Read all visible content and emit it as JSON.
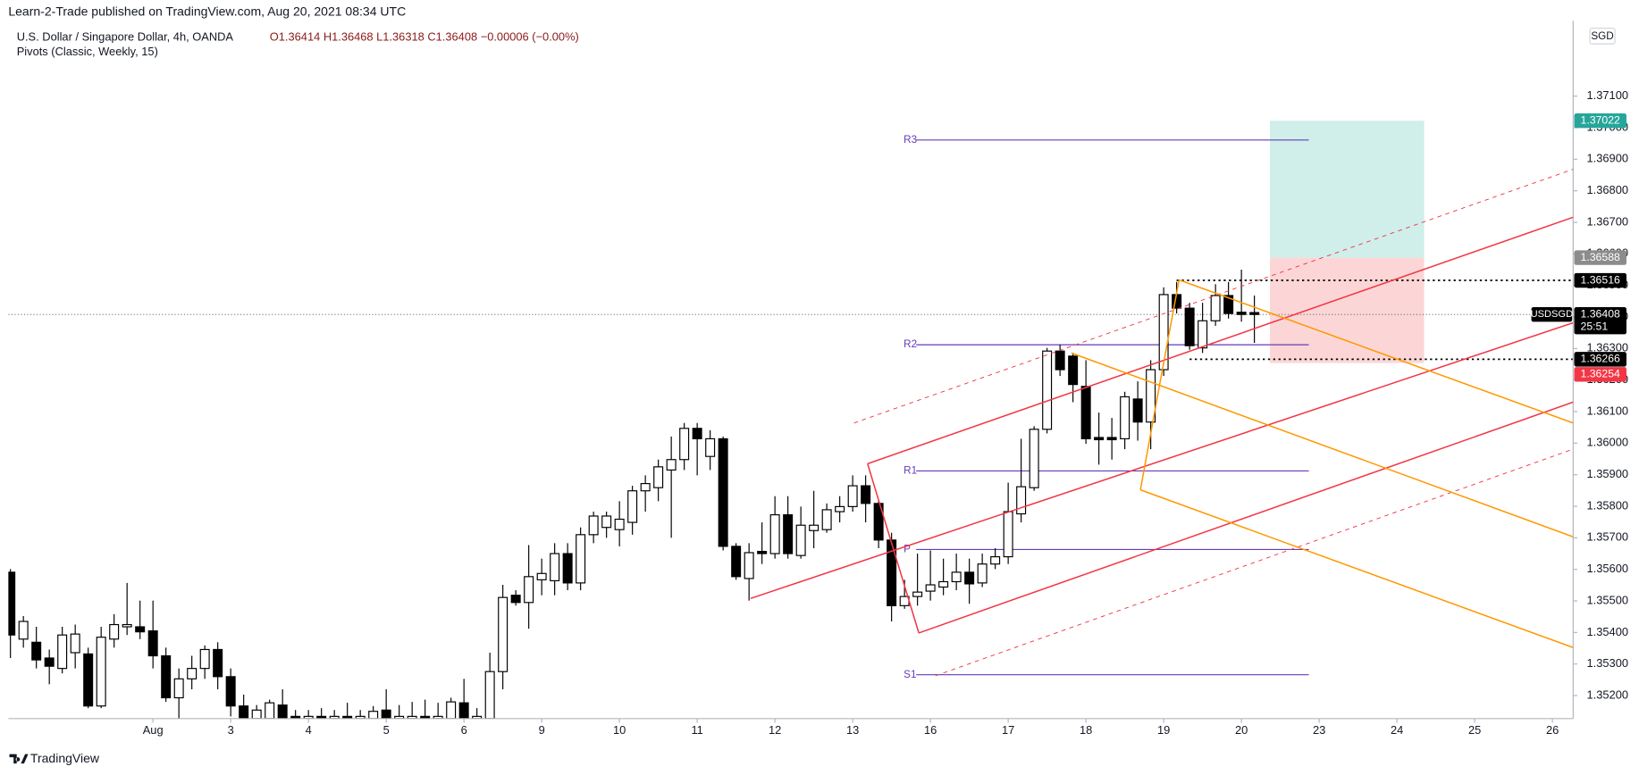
{
  "header": {
    "publisher": "Learn-2-Trade published on TradingView.com, Aug 20, 2021 08:34 UTC",
    "footer": "TradingView"
  },
  "chart_data": {
    "type": "candlestick",
    "title": "U.S. Dollar / Singapore Dollar, 4h, OANDA",
    "subtitle": "O1.36414 H1.36468 L1.36318 C1.36408 −0.00006 (−0.00%)",
    "indicator": "Pivots (Classic, Weekly, 15)",
    "currency": "SGD",
    "up_color": "#ffffff",
    "down_color": "#000000",
    "series": [
      {
        "name": "USDSGD",
        "open": [
          1.35591,
          1.35379,
          1.35369,
          1.35319,
          1.35286,
          1.35336,
          1.35332,
          1.35167,
          1.35379,
          1.35418,
          1.35418,
          1.35405,
          1.35326,
          1.35193,
          1.35253,
          1.35286,
          1.35346,
          1.3526,
          1.35167,
          1.35127,
          1.35127,
          1.3517,
          1.35134,
          1.35127,
          1.35134,
          1.35127,
          1.35134,
          1.35127,
          1.35127,
          1.35154,
          1.35127,
          1.35127,
          1.35134,
          1.35127,
          1.35127,
          1.35177,
          1.35127,
          1.35127,
          1.35276,
          1.35518,
          1.35495,
          1.35567,
          1.35564,
          1.3565,
          1.35557,
          1.3571,
          1.35733,
          1.35726,
          1.35749,
          1.35849,
          1.35859,
          1.35915,
          1.35948,
          1.36047,
          1.35958,
          1.36014,
          1.35673,
          1.35571,
          1.35657,
          1.3565,
          1.35773,
          1.35644,
          1.35723,
          1.35726,
          1.35783,
          1.35799,
          1.35865,
          1.35809,
          1.35693,
          1.35485,
          1.35514,
          1.35531,
          1.35544,
          1.35561,
          1.35591,
          1.35557,
          1.35617,
          1.3564,
          1.35776,
          1.35859,
          1.36044,
          1.36292,
          1.36276,
          1.3618,
          1.36018,
          1.36018,
          1.36014,
          1.3614,
          1.36067,
          1.36233,
          1.36471,
          1.36428,
          1.36302,
          1.36388,
          1.36468,
          1.36415,
          1.36414
        ],
        "high": [
          1.35601,
          1.35452,
          1.35418,
          1.35346,
          1.35418,
          1.35425,
          1.35352,
          1.35418,
          1.35458,
          1.35557,
          1.35501,
          1.35501,
          1.35352,
          1.35286,
          1.35326,
          1.35359,
          1.35369,
          1.35286,
          1.35203,
          1.3517,
          1.35187,
          1.3522,
          1.35154,
          1.35154,
          1.3516,
          1.35154,
          1.35177,
          1.35154,
          1.35167,
          1.3522,
          1.3517,
          1.3518,
          1.35187,
          1.35177,
          1.35193,
          1.35253,
          1.3516,
          1.35336,
          1.35551,
          1.35534,
          1.35677,
          1.35634,
          1.35683,
          1.35683,
          1.35733,
          1.35783,
          1.35783,
          1.35816,
          1.35865,
          1.35898,
          1.35948,
          1.36021,
          1.36064,
          1.36064,
          1.36041,
          1.36021,
          1.35683,
          1.35683,
          1.35749,
          1.35832,
          1.35832,
          1.35799,
          1.35849,
          1.35809,
          1.35832,
          1.35898,
          1.35898,
          1.35816,
          1.35716,
          1.35567,
          1.3565,
          1.3566,
          1.35634,
          1.3565,
          1.35634,
          1.3565,
          1.35667,
          1.35875,
          1.36014,
          1.36054,
          1.36302,
          1.36312,
          1.36286,
          1.36263,
          1.36097,
          1.3608,
          1.36163,
          1.36196,
          1.36263,
          1.36494,
          1.36511,
          1.36445,
          1.36445,
          1.36504,
          1.36511,
          1.3655,
          1.36468
        ],
        "low": [
          1.35319,
          1.35352,
          1.35286,
          1.35236,
          1.3527,
          1.35286,
          1.3516,
          1.3516,
          1.35352,
          1.35392,
          1.35379,
          1.35286,
          1.3518,
          1.35127,
          1.3522,
          1.35253,
          1.3522,
          1.35134,
          1.35114,
          1.35121,
          1.35121,
          1.35114,
          1.35121,
          1.35121,
          1.35114,
          1.35121,
          1.35114,
          1.35121,
          1.35121,
          1.35114,
          1.35121,
          1.35121,
          1.35114,
          1.35121,
          1.35121,
          1.35114,
          1.35121,
          1.35121,
          1.3522,
          1.35485,
          1.35412,
          1.35518,
          1.35518,
          1.35534,
          1.35534,
          1.35683,
          1.357,
          1.35673,
          1.3571,
          1.35783,
          1.35816,
          1.357,
          1.35915,
          1.35898,
          1.35915,
          1.3566,
          1.35567,
          1.35501,
          1.35617,
          1.35634,
          1.35634,
          1.35634,
          1.35667,
          1.35716,
          1.35749,
          1.35783,
          1.35749,
          1.35667,
          1.35435,
          1.35475,
          1.35485,
          1.35501,
          1.35518,
          1.35534,
          1.35491,
          1.35544,
          1.35601,
          1.35617,
          1.35749,
          1.35849,
          1.36031,
          1.36213,
          1.3613,
          1.35998,
          1.35932,
          1.35948,
          1.35981,
          1.36008,
          1.35981,
          1.36213,
          1.36411,
          1.36296,
          1.36286,
          1.36372,
          1.36395,
          1.36385,
          1.36318
        ],
        "close": [
          1.35392,
          1.35435,
          1.35313,
          1.35293,
          1.35392,
          1.35395,
          1.35167,
          1.35385,
          1.35425,
          1.35425,
          1.35402,
          1.35326,
          1.35193,
          1.35253,
          1.35286,
          1.35346,
          1.3526,
          1.35167,
          1.35127,
          1.35154,
          1.35177,
          1.35127,
          1.35127,
          1.35134,
          1.35127,
          1.35134,
          1.35127,
          1.35134,
          1.3515,
          1.35127,
          1.35134,
          1.35134,
          1.35127,
          1.35134,
          1.3518,
          1.35127,
          1.35134,
          1.35276,
          1.35511,
          1.35495,
          1.35577,
          1.35587,
          1.3565,
          1.35557,
          1.3571,
          1.35769,
          1.35769,
          1.35759,
          1.35849,
          1.35872,
          1.35925,
          1.35948,
          1.36047,
          1.36014,
          1.36014,
          1.35673,
          1.35577,
          1.35653,
          1.3565,
          1.35773,
          1.3565,
          1.3574,
          1.3574,
          1.35789,
          1.35799,
          1.35865,
          1.35809,
          1.35693,
          1.35485,
          1.35514,
          1.35528,
          1.35551,
          1.35561,
          1.35591,
          1.35554,
          1.35617,
          1.3564,
          1.35783,
          1.35862,
          1.36044,
          1.36292,
          1.36233,
          1.36186,
          1.36014,
          1.36011,
          1.36011,
          1.36147,
          1.36067,
          1.36233,
          1.36471,
          1.36428,
          1.36309,
          1.36388,
          1.36468,
          1.36411,
          1.36408,
          1.36408
        ]
      }
    ],
    "countdown": "25:51",
    "xlim": [
      -0.16,
      120.6
    ],
    "xticks": [
      {
        "value": 11,
        "label": "Aug"
      },
      {
        "value": 17,
        "label": "3"
      },
      {
        "value": 23,
        "label": "4"
      },
      {
        "value": 29,
        "label": "5"
      },
      {
        "value": 35,
        "label": "6"
      },
      {
        "value": 41,
        "label": "9"
      },
      {
        "value": 47,
        "label": "10"
      },
      {
        "value": 53,
        "label": "11"
      },
      {
        "value": 59,
        "label": "12"
      },
      {
        "value": 65,
        "label": "13"
      },
      {
        "value": 71,
        "label": "16"
      },
      {
        "value": 77,
        "label": "17"
      },
      {
        "value": 83,
        "label": "18"
      },
      {
        "value": 89,
        "label": "19"
      },
      {
        "value": 95,
        "label": "20"
      },
      {
        "value": 101,
        "label": "23"
      },
      {
        "value": 107,
        "label": "24"
      },
      {
        "value": 113,
        "label": "25"
      },
      {
        "value": 119,
        "label": "26"
      }
    ],
    "ylim": [
      1.35127,
      1.37322
    ],
    "yticks": [
      {
        "value": 1.352,
        "label": "1.35200"
      },
      {
        "value": 1.353,
        "label": "1.35300"
      },
      {
        "value": 1.354,
        "label": "1.35400"
      },
      {
        "value": 1.355,
        "label": "1.35500"
      },
      {
        "value": 1.356,
        "label": "1.35600"
      },
      {
        "value": 1.357,
        "label": "1.35700"
      },
      {
        "value": 1.358,
        "label": "1.35800"
      },
      {
        "value": 1.359,
        "label": "1.35900"
      },
      {
        "value": 1.36,
        "label": "1.36000"
      },
      {
        "value": 1.361,
        "label": "1.36100"
      },
      {
        "value": 1.362,
        "label": "1.36200"
      },
      {
        "value": 1.363,
        "label": "1.36300"
      },
      {
        "value": 1.364,
        "label": "1.36400"
      },
      {
        "value": 1.365,
        "label": "1.36500"
      },
      {
        "value": 1.366,
        "label": "1.36600"
      },
      {
        "value": 1.367,
        "label": "1.36700"
      },
      {
        "value": 1.368,
        "label": "1.36800"
      },
      {
        "value": 1.369,
        "label": "1.36900"
      },
      {
        "value": 1.37,
        "label": "1.37000"
      },
      {
        "value": 1.371,
        "label": "1.37100"
      }
    ],
    "pivots": {
      "color": "#673ab7",
      "labels": [
        "R3",
        "R2",
        "R1",
        "P",
        "S1"
      ],
      "values": [
        1.36961,
        1.36312,
        1.35912,
        1.35663,
        1.35266
      ]
    },
    "price_labels": [
      {
        "value": 1.37022,
        "color": "#26a69a"
      },
      {
        "value": 1.36588,
        "color": "#8c8c8c"
      },
      {
        "value": 1.36516,
        "color": "#000000"
      },
      {
        "value": 1.36408,
        "color": "#000000"
      },
      {
        "value": 1.36266,
        "color": "#000000"
      },
      {
        "value": 1.36254,
        "color": "#f23645"
      }
    ]
  }
}
